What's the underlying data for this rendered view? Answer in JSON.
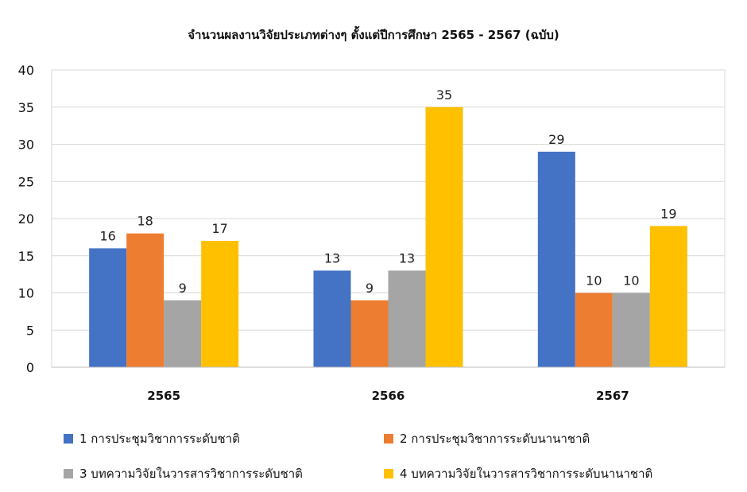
{
  "chart_data": {
    "type": "bar",
    "title": "จำนวนผลงานวิจัยประเภทต่างๆ  ตั้งแต่ปีการศึกษา 2565 - 2567 (ฉบับ)",
    "categories": [
      "2565",
      "2566",
      "2567"
    ],
    "series": [
      {
        "name": "1 การประชุมวิชาการระดับชาติ",
        "values": [
          16,
          13,
          29
        ],
        "color": "#4472C4"
      },
      {
        "name": "2 การประชุมวิชาการระดับนานาชาติ",
        "values": [
          18,
          9,
          10
        ],
        "color": "#ED7D31"
      },
      {
        "name": "3 บทความวิจัยในวารสารวิชาการระดับชาติ",
        "values": [
          9,
          13,
          10
        ],
        "color": "#A5A5A5"
      },
      {
        "name": "4 บทความวิจัยในวารสารวิชาการระดับนานาชาติ",
        "values": [
          17,
          35,
          19
        ],
        "color": "#FFC000"
      }
    ],
    "ylim": [
      0,
      40
    ],
    "yticks": [
      "0",
      "5",
      "10",
      "15",
      "20",
      "25",
      "30",
      "35",
      "40"
    ],
    "grid": true,
    "legend_position": "bottom",
    "data_labels": true
  }
}
